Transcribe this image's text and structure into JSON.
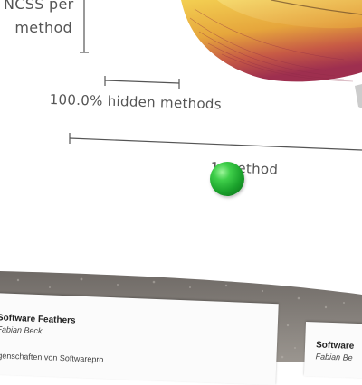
{
  "poster": {
    "label_ncss": "NCSS per",
    "label_method": "method",
    "label_hidden": "100.0% hidden methods",
    "label_method_scale": "1 method"
  },
  "cards": [
    {
      "title": "Software Feathers",
      "author": "Fabian Beck",
      "body": "igenschaften von Softwarepro"
    },
    {
      "title": "Software",
      "author": "Fabian Be"
    }
  ],
  "colors": {
    "feather_yellow": "#f0c23a",
    "feather_red": "#a8324e",
    "ball_green": "#22b030",
    "pavement": "#8a8580"
  }
}
